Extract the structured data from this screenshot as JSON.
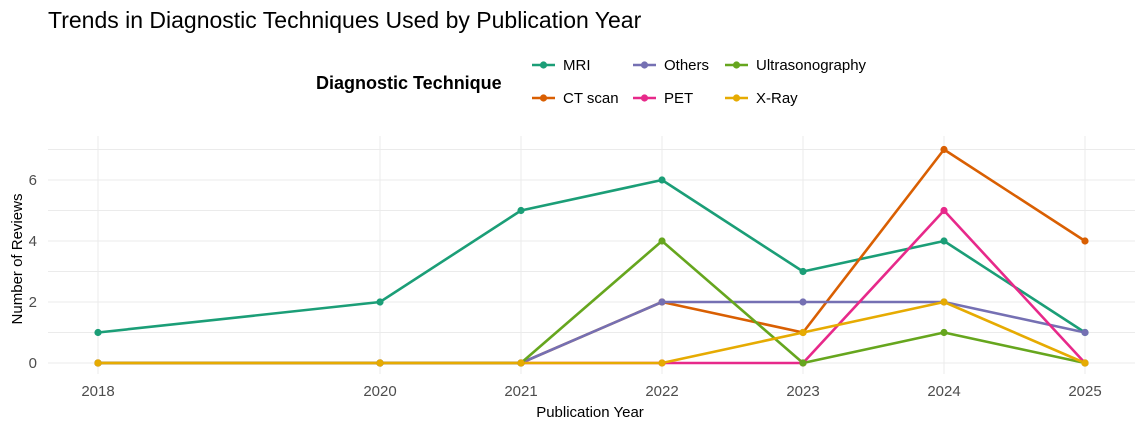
{
  "chart_data": {
    "type": "line",
    "title": "Trends in Diagnostic Techniques Used by Publication Year",
    "xlabel": "Publication Year",
    "ylabel": "Number of Reviews",
    "x": [
      2018,
      2020,
      2021,
      2022,
      2023,
      2024,
      2025
    ],
    "xlim": [
      2018,
      2025
    ],
    "ylim": [
      0,
      7
    ],
    "yticks": [
      0,
      2,
      4,
      6
    ],
    "grid": true,
    "legend": {
      "title": "Diagnostic Technique",
      "placement": "top"
    },
    "series": [
      {
        "name": "MRI",
        "color": "#1b9e77",
        "values": [
          1,
          2,
          5,
          6,
          3,
          4,
          1
        ]
      },
      {
        "name": "CT scan",
        "color": "#d95f02",
        "values": [
          0,
          0,
          0,
          2,
          1,
          7,
          4
        ]
      },
      {
        "name": "Others",
        "color": "#7570b3",
        "values": [
          0,
          0,
          0,
          2,
          2,
          2,
          1
        ]
      },
      {
        "name": "PET",
        "color": "#e7298a",
        "values": [
          0,
          0,
          0,
          0,
          0,
          5,
          0
        ]
      },
      {
        "name": "Ultrasonography",
        "color": "#66a61e",
        "values": [
          0,
          0,
          0,
          4,
          0,
          1,
          0
        ]
      },
      {
        "name": "X-Ray",
        "color": "#e6ab02",
        "values": [
          0,
          0,
          0,
          0,
          1,
          2,
          0
        ]
      }
    ]
  }
}
